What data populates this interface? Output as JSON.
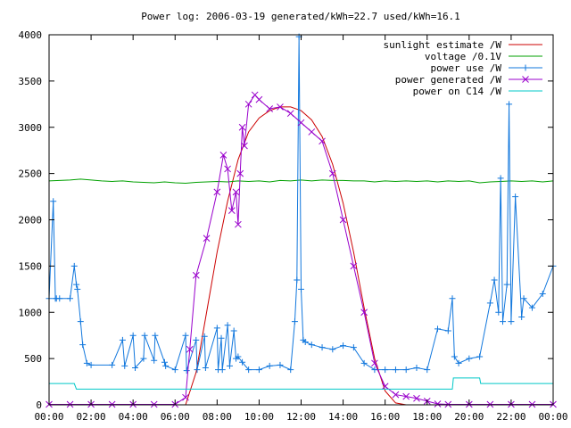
{
  "chart_data": {
    "type": "line",
    "title": "Power log: 2006-03-19 generated/kWh=22.7 used/kWh=16.1",
    "xlabel": "",
    "ylabel": "",
    "x_ticks": [
      "00:00",
      "02:00",
      "04:00",
      "06:00",
      "08:00",
      "10:00",
      "12:00",
      "14:00",
      "16:00",
      "18:00",
      "20:00",
      "22:00",
      "00:00"
    ],
    "y_ticks": [
      0,
      500,
      1000,
      1500,
      2000,
      2500,
      3000,
      3500,
      4000
    ],
    "xlim": [
      0,
      24
    ],
    "ylim": [
      0,
      4000
    ],
    "grid": false,
    "legend_position": "top-right",
    "series": [
      {
        "name": "sunlight estimate /W",
        "color": "#cc0000",
        "marker": "none",
        "x": [
          6.5,
          7.0,
          7.5,
          8.0,
          8.5,
          9.0,
          9.5,
          10.0,
          10.5,
          11.0,
          11.5,
          12.0,
          12.5,
          13.0,
          13.5,
          14.0,
          14.5,
          15.0,
          15.5,
          16.0,
          16.5,
          17.0
        ],
        "values": [
          0,
          350,
          1000,
          1650,
          2200,
          2650,
          2950,
          3100,
          3180,
          3220,
          3220,
          3180,
          3080,
          2900,
          2600,
          2180,
          1650,
          1050,
          500,
          150,
          20,
          0
        ]
      },
      {
        "name": "voltage /0.1V",
        "color": "#00a000",
        "marker": "none",
        "x": [
          0.0,
          0.5,
          1.0,
          1.5,
          2.0,
          2.5,
          3.0,
          3.5,
          4.0,
          4.5,
          5.0,
          5.5,
          6.0,
          6.5,
          7.0,
          7.5,
          8.0,
          8.5,
          9.0,
          9.5,
          10.0,
          10.5,
          11.0,
          11.5,
          12.0,
          12.5,
          13.0,
          13.5,
          14.0,
          14.5,
          15.0,
          15.5,
          16.0,
          16.5,
          17.0,
          17.5,
          18.0,
          18.5,
          19.0,
          19.5,
          20.0,
          20.5,
          21.0,
          21.5,
          22.0,
          22.5,
          23.0,
          23.5,
          24.0
        ],
        "values": [
          2420,
          2425,
          2430,
          2440,
          2430,
          2420,
          2415,
          2420,
          2410,
          2405,
          2400,
          2410,
          2400,
          2395,
          2405,
          2410,
          2415,
          2410,
          2420,
          2415,
          2420,
          2410,
          2425,
          2420,
          2430,
          2420,
          2430,
          2425,
          2425,
          2420,
          2420,
          2410,
          2420,
          2415,
          2420,
          2415,
          2420,
          2410,
          2420,
          2415,
          2420,
          2400,
          2410,
          2415,
          2420,
          2415,
          2420,
          2410,
          2420
        ]
      },
      {
        "name": "power use /W",
        "color": "#1177dd",
        "marker": "plus",
        "x": [
          0.0,
          0.2,
          0.3,
          0.35,
          0.5,
          1.0,
          1.2,
          1.3,
          1.35,
          1.5,
          1.6,
          1.8,
          2.0,
          3.0,
          3.5,
          3.6,
          4.0,
          4.1,
          4.5,
          4.55,
          5.0,
          5.05,
          5.5,
          5.55,
          6.0,
          6.5,
          6.55,
          7.0,
          7.05,
          7.4,
          7.45,
          8.0,
          8.05,
          8.2,
          8.25,
          8.5,
          8.6,
          8.8,
          8.9,
          9.0,
          9.2,
          9.5,
          10.0,
          10.5,
          11.0,
          11.5,
          11.7,
          11.8,
          11.9,
          12.0,
          12.1,
          12.2,
          12.5,
          13.0,
          13.5,
          14.0,
          14.5,
          15.0,
          15.5,
          16.0,
          16.5,
          17.0,
          17.5,
          18.0,
          18.5,
          19.0,
          19.2,
          19.3,
          19.5,
          20.0,
          20.5,
          21.0,
          21.2,
          21.4,
          21.5,
          21.6,
          21.8,
          21.9,
          22.0,
          22.2,
          22.5,
          22.6,
          23.0,
          23.5,
          24.0
        ],
        "values": [
          1150,
          2200,
          1150,
          1150,
          1150,
          1150,
          1500,
          1300,
          1250,
          900,
          650,
          450,
          430,
          430,
          700,
          420,
          750,
          400,
          500,
          750,
          480,
          750,
          460,
          420,
          380,
          750,
          370,
          700,
          380,
          740,
          400,
          830,
          380,
          720,
          380,
          860,
          420,
          800,
          500,
          520,
          460,
          380,
          380,
          420,
          430,
          380,
          900,
          1350,
          3980,
          1250,
          700,
          680,
          650,
          620,
          600,
          640,
          620,
          450,
          380,
          380,
          380,
          380,
          400,
          380,
          820,
          800,
          1150,
          520,
          450,
          500,
          520,
          1100,
          1350,
          1000,
          2450,
          900,
          1300,
          3250,
          900,
          2250,
          950,
          1150,
          1050,
          1200,
          1500
        ]
      },
      {
        "name": "power generated /W",
        "color": "#9900cc",
        "marker": "x",
        "x": [
          0.0,
          1.0,
          2.0,
          3.0,
          4.0,
          5.0,
          6.0,
          6.5,
          6.7,
          7.0,
          7.5,
          8.0,
          8.3,
          8.5,
          8.7,
          8.9,
          9.0,
          9.1,
          9.2,
          9.3,
          9.5,
          9.8,
          10.0,
          10.5,
          11.0,
          11.5,
          12.0,
          12.5,
          13.0,
          13.5,
          14.0,
          14.5,
          15.0,
          15.5,
          16.0,
          16.5,
          17.0,
          17.5,
          18.0,
          18.5,
          19.0,
          20.0,
          21.0,
          22.0,
          23.0,
          24.0
        ],
        "values": [
          5,
          5,
          5,
          5,
          5,
          5,
          5,
          80,
          600,
          1400,
          1800,
          2300,
          2700,
          2550,
          2100,
          2300,
          1950,
          2500,
          3000,
          2800,
          3250,
          3350,
          3300,
          3200,
          3220,
          3150,
          3050,
          2950,
          2850,
          2500,
          2000,
          1500,
          1000,
          450,
          200,
          110,
          90,
          70,
          40,
          10,
          5,
          5,
          5,
          5,
          5,
          5
        ]
      },
      {
        "name": "power on C14 /W",
        "color": "#00c8c8",
        "marker": "none",
        "x": [
          0.0,
          1.2,
          1.3,
          19.2,
          19.25,
          20.5,
          20.55,
          24.0
        ],
        "values": [
          230,
          230,
          170,
          170,
          290,
          290,
          230,
          230
        ]
      }
    ]
  }
}
